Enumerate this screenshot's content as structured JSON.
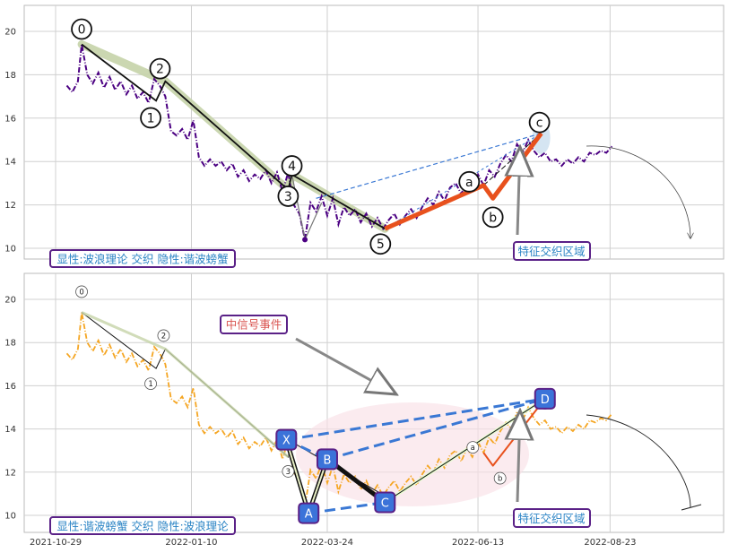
{
  "chart_data": {
    "type": "line",
    "x_ticks": [
      "2021-10-29",
      "2022-01-10",
      "2022-03-24",
      "2022-06-13",
      "2022-08-23"
    ],
    "x_range": [
      "2021-10-29",
      "2022-10-10"
    ],
    "grid": true,
    "panels": [
      {
        "id": "top",
        "ylim": [
          9.5,
          21.2
        ],
        "y_ticks": [
          10,
          12,
          14,
          16,
          18,
          20
        ],
        "price_color": "#4b0082",
        "price_series": [
          [
            "2021-11-04",
            17.5
          ],
          [
            "2021-11-07",
            17.2
          ],
          [
            "2021-11-10",
            17.7
          ],
          [
            "2021-11-12",
            19.4
          ],
          [
            "2021-11-15",
            18.0
          ],
          [
            "2021-11-18",
            17.6
          ],
          [
            "2021-11-21",
            18.1
          ],
          [
            "2021-11-24",
            17.4
          ],
          [
            "2021-11-27",
            17.9
          ],
          [
            "2021-11-30",
            17.3
          ],
          [
            "2021-12-03",
            17.7
          ],
          [
            "2021-12-06",
            17.1
          ],
          [
            "2021-12-09",
            17.5
          ],
          [
            "2021-12-12",
            16.9
          ],
          [
            "2021-12-15",
            17.2
          ],
          [
            "2021-12-18",
            16.7
          ],
          [
            "2021-12-21",
            17.8
          ],
          [
            "2021-12-24",
            17.5
          ],
          [
            "2021-12-27",
            17.0
          ],
          [
            "2021-12-30",
            15.4
          ],
          [
            "2022-01-02",
            15.2
          ],
          [
            "2022-01-05",
            15.5
          ],
          [
            "2022-01-08",
            15.0
          ],
          [
            "2022-01-11",
            15.9
          ],
          [
            "2022-01-14",
            14.2
          ],
          [
            "2022-01-17",
            13.8
          ],
          [
            "2022-01-20",
            14.1
          ],
          [
            "2022-01-23",
            13.8
          ],
          [
            "2022-01-26",
            14.0
          ],
          [
            "2022-01-29",
            13.6
          ],
          [
            "2022-02-01",
            13.9
          ],
          [
            "2022-02-04",
            13.3
          ],
          [
            "2022-02-07",
            13.6
          ],
          [
            "2022-02-10",
            13.1
          ],
          [
            "2022-02-13",
            13.4
          ],
          [
            "2022-02-16",
            13.2
          ],
          [
            "2022-02-19",
            13.6
          ],
          [
            "2022-02-22",
            13.0
          ],
          [
            "2022-02-25",
            13.5
          ],
          [
            "2022-02-28",
            12.6
          ],
          [
            "2022-03-03",
            13.5
          ],
          [
            "2022-03-06",
            12.0
          ],
          [
            "2022-03-09",
            11.6
          ],
          [
            "2022-03-12",
            10.4
          ],
          [
            "2022-03-15",
            12.1
          ],
          [
            "2022-03-18",
            11.7
          ],
          [
            "2022-03-21",
            12.4
          ],
          [
            "2022-03-24",
            11.5
          ],
          [
            "2022-03-27",
            12.3
          ],
          [
            "2022-03-30",
            11.1
          ],
          [
            "2022-04-02",
            11.9
          ],
          [
            "2022-04-05",
            11.5
          ],
          [
            "2022-04-08",
            11.8
          ],
          [
            "2022-04-11",
            11.2
          ],
          [
            "2022-04-14",
            11.6
          ],
          [
            "2022-04-17",
            11.0
          ],
          [
            "2022-04-20",
            11.4
          ],
          [
            "2022-04-23",
            10.9
          ],
          [
            "2022-04-26",
            11.3
          ],
          [
            "2022-04-29",
            11.6
          ],
          [
            "2022-05-02",
            11.1
          ],
          [
            "2022-05-05",
            11.5
          ],
          [
            "2022-05-08",
            11.8
          ],
          [
            "2022-05-11",
            11.4
          ],
          [
            "2022-05-14",
            11.9
          ],
          [
            "2022-05-17",
            12.3
          ],
          [
            "2022-05-20",
            12.0
          ],
          [
            "2022-05-23",
            12.6
          ],
          [
            "2022-05-26",
            12.2
          ],
          [
            "2022-05-29",
            12.8
          ],
          [
            "2022-06-01",
            13.0
          ],
          [
            "2022-06-04",
            12.5
          ],
          [
            "2022-06-07",
            13.1
          ],
          [
            "2022-06-10",
            12.7
          ],
          [
            "2022-06-13",
            13.4
          ],
          [
            "2022-06-16",
            12.9
          ],
          [
            "2022-06-19",
            13.6
          ],
          [
            "2022-06-22",
            13.3
          ],
          [
            "2022-06-25",
            13.9
          ],
          [
            "2022-06-28",
            14.3
          ],
          [
            "2022-07-01",
            14.0
          ],
          [
            "2022-07-04",
            14.8
          ],
          [
            "2022-07-07",
            14.4
          ],
          [
            "2022-07-10",
            15.0
          ],
          [
            "2022-07-13",
            14.5
          ],
          [
            "2022-07-16",
            14.2
          ],
          [
            "2022-07-19",
            14.4
          ],
          [
            "2022-07-22",
            14.0
          ],
          [
            "2022-07-25",
            14.1
          ],
          [
            "2022-07-28",
            13.8
          ],
          [
            "2022-07-31",
            14.1
          ],
          [
            "2022-08-03",
            13.9
          ],
          [
            "2022-08-06",
            14.2
          ],
          [
            "2022-08-09",
            14.0
          ],
          [
            "2022-08-12",
            14.4
          ],
          [
            "2022-08-15",
            14.3
          ],
          [
            "2022-08-18",
            14.5
          ],
          [
            "2022-08-21",
            14.4
          ],
          [
            "2022-08-24",
            14.7
          ]
        ],
        "wave_main": [
          {
            "label": "0",
            "x": "2021-11-12",
            "y": 19.4
          },
          {
            "label": "1",
            "x": "2021-12-22",
            "y": 16.8
          },
          {
            "label": "2",
            "x": "2021-12-27",
            "y": 17.7
          },
          {
            "label": "3",
            "x": "2022-03-03",
            "y": 12.7
          },
          {
            "label": "4",
            "x": "2022-03-05",
            "y": 13.4
          },
          {
            "label": "5",
            "x": "2022-04-24",
            "y": 10.9
          }
        ],
        "wave_abc": [
          {
            "label": "a",
            "x": "2022-06-16",
            "y": 12.9
          },
          {
            "label": "b",
            "x": "2022-06-21",
            "y": 12.3
          },
          {
            "label": "c",
            "x": "2022-07-17",
            "y": 15.3
          }
        ],
        "low_point": {
          "x": "2022-03-12",
          "y": 10.4
        },
        "highlight_point": {
          "x": "2022-07-17",
          "y": 15.3
        },
        "legend_box": "显性:波浪理论 交织 隐性:谐波螃蟹",
        "feature_box": "特征交织区域"
      },
      {
        "id": "bottom",
        "ylim": [
          9.5,
          21.2
        ],
        "y_ticks": [
          10,
          12,
          14,
          16,
          18,
          20
        ],
        "price_color": "#f5a623",
        "harmonic": [
          {
            "label": "X",
            "x": "2022-03-02",
            "y": 13.5
          },
          {
            "label": "A",
            "x": "2022-03-14",
            "y": 10.1
          },
          {
            "label": "B",
            "x": "2022-03-24",
            "y": 12.6
          },
          {
            "label": "C",
            "x": "2022-04-24",
            "y": 10.6
          },
          {
            "label": "D",
            "x": "2022-07-19",
            "y": 15.4
          }
        ],
        "small_labels": [
          "0",
          "1",
          "2",
          "3",
          "a",
          "b"
        ],
        "event_box": "中信号事件",
        "legend_box": "显性:谐波螃蟹 交织 隐性:波浪理论",
        "feature_box": "特征交织区域"
      }
    ]
  }
}
